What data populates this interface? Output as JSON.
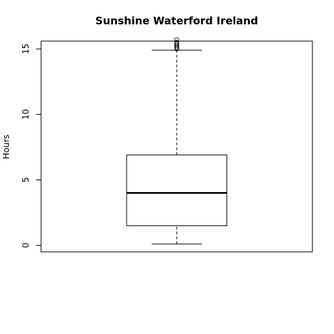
{
  "chart_data": {
    "type": "boxplot",
    "title": "Sunshine Waterford Ireland",
    "xlabel": "",
    "ylabel": "Hours",
    "ylim": [
      -0.5,
      15.6
    ],
    "yticks": [
      0,
      5,
      10,
      15
    ],
    "grid": false,
    "box": {
      "min": 0.1,
      "q1": 1.5,
      "median": 4.0,
      "q3": 6.9,
      "max": 14.9,
      "outliers": [
        15.0,
        15.1,
        15.2,
        15.3,
        15.4,
        15.5,
        15.7
      ]
    }
  }
}
